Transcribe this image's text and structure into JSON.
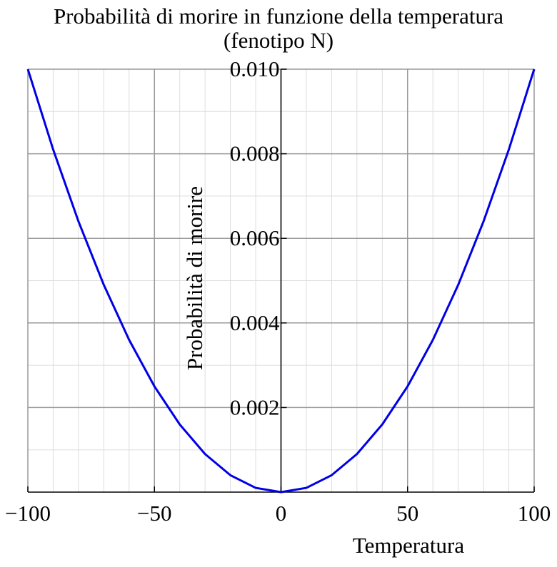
{
  "chart_data": {
    "type": "line",
    "title": "Probabilità di morire in funzione della temperatura",
    "subtitle": "(fenotipo N)",
    "xlabel": "Temperatura",
    "ylabel": "Probabilità di morire",
    "xlim": [
      -100,
      100
    ],
    "ylim": [
      0,
      0.01
    ],
    "x_ticks": [
      -100,
      -50,
      0,
      50,
      100
    ],
    "x_tick_labels": [
      "−100",
      "−50",
      "0",
      "50",
      "100"
    ],
    "y_ticks": [
      0.002,
      0.004,
      0.006,
      0.008,
      0.01
    ],
    "y_tick_labels": [
      "0.002",
      "0.004",
      "0.006",
      "0.008",
      "0.010"
    ],
    "grid": true,
    "series": [
      {
        "color": "#0000e6",
        "x": [
          -100,
          -90,
          -80,
          -70,
          -60,
          -50,
          -40,
          -30,
          -20,
          -10,
          0,
          10,
          20,
          30,
          40,
          50,
          60,
          70,
          80,
          90,
          100
        ],
        "y": [
          0.01,
          0.0081,
          0.0064,
          0.0049,
          0.0036,
          0.0025,
          0.0016,
          0.0009,
          0.0004,
          0.0001,
          0,
          0.0001,
          0.0004,
          0.0009,
          0.0016,
          0.0025,
          0.0036,
          0.0049,
          0.0064,
          0.0081,
          0.01
        ]
      }
    ]
  },
  "colors": {
    "major_grid": "#999999",
    "minor_grid": "#dddddd",
    "axis": "#000000",
    "curve": "#0000e6"
  }
}
